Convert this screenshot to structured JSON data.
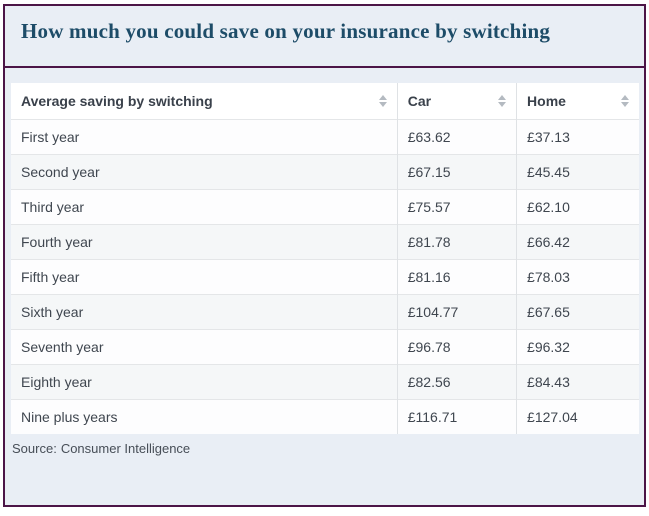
{
  "title": "How much you could save on your insurance by switching",
  "table": {
    "columns": [
      {
        "label": "Average saving by switching"
      },
      {
        "label": "Car"
      },
      {
        "label": "Home"
      }
    ],
    "rows": [
      {
        "label": "First year",
        "car": "£63.62",
        "home": "£37.13"
      },
      {
        "label": "Second year",
        "car": "£67.15",
        "home": "£45.45"
      },
      {
        "label": "Third year",
        "car": "£75.57",
        "home": "£62.10"
      },
      {
        "label": "Fourth year",
        "car": "£81.78",
        "home": "£66.42"
      },
      {
        "label": "Fifth year",
        "car": "£81.16",
        "home": "£78.03"
      },
      {
        "label": "Sixth year",
        "car": "£104.77",
        "home": "£67.65"
      },
      {
        "label": "Seventh year",
        "car": "£96.78",
        "home": "£96.32"
      },
      {
        "label": "Eighth year",
        "car": "£82.56",
        "home": "£84.43"
      },
      {
        "label": "Nine plus years",
        "car": "£116.71",
        "home": "£127.04"
      }
    ]
  },
  "footer": {
    "source_label": "Source:",
    "source_value": "Consumer Intelligence"
  },
  "icons": {
    "sort": "sort-arrows-icon"
  },
  "colors": {
    "border_accent": "#4c1547",
    "panel_background": "#e9eef5",
    "title_text": "#1d4c68",
    "row_alt_background": "#f5f7f8",
    "grid_line": "#e4e6e8",
    "sort_arrow": "#b4bac1"
  },
  "chart_data": {
    "type": "table",
    "title": "How much you could save on your insurance by switching",
    "columns": [
      "Average saving by switching",
      "Car",
      "Home"
    ],
    "rows": [
      [
        "First year",
        63.62,
        37.13
      ],
      [
        "Second year",
        67.15,
        45.45
      ],
      [
        "Third year",
        75.57,
        62.1
      ],
      [
        "Fourth year",
        81.78,
        66.42
      ],
      [
        "Fifth year",
        81.16,
        78.03
      ],
      [
        "Sixth year",
        104.77,
        67.65
      ],
      [
        "Seventh year",
        96.78,
        96.32
      ],
      [
        "Eighth year",
        82.56,
        84.43
      ],
      [
        "Nine plus years",
        116.71,
        127.04
      ]
    ],
    "currency": "GBP",
    "source": "Consumer Intelligence"
  }
}
